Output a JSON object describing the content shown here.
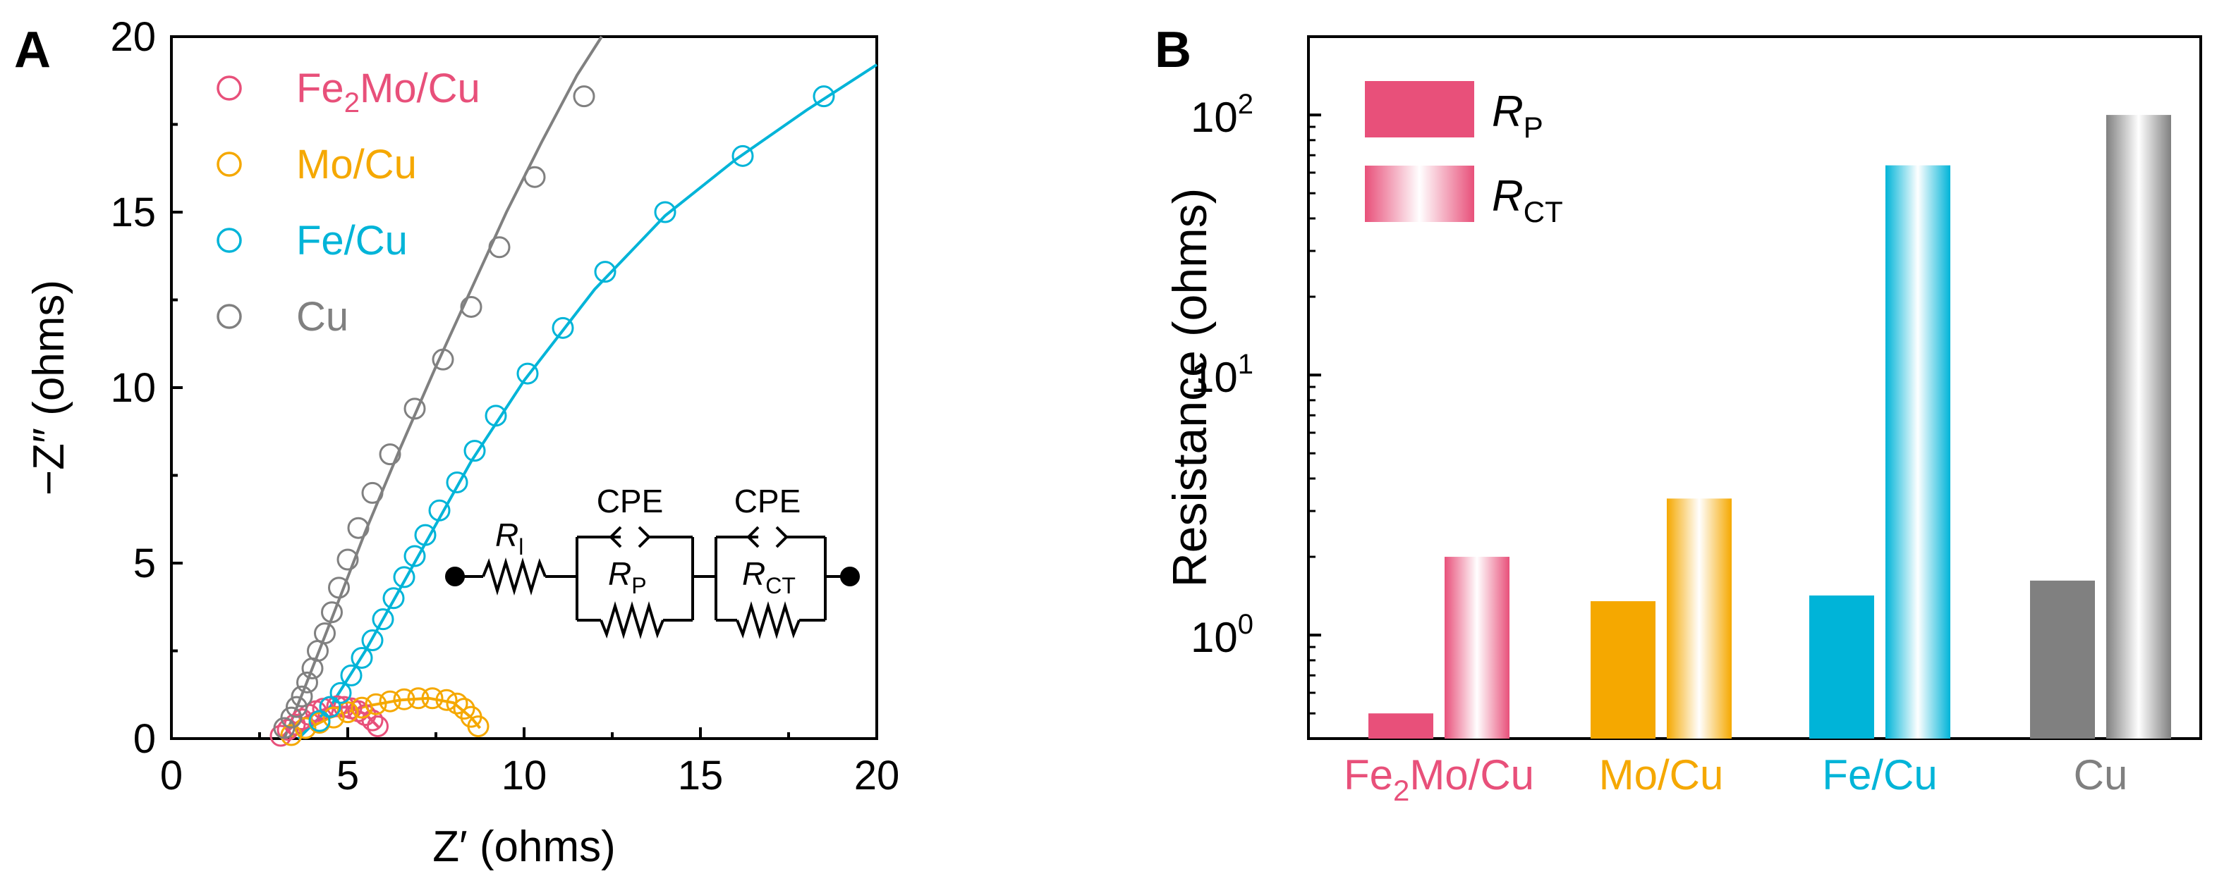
{
  "colors": {
    "fe2mo": "#e8507a",
    "mo": "#f5a800",
    "fe": "#00b4d8",
    "cu": "#808080",
    "axis": "#000000"
  },
  "chart_data": [
    {
      "type": "scatter",
      "panel_label": "A",
      "title": "",
      "xlabel": "Z′ (ohms)",
      "ylabel": "−Z″ (ohms)",
      "xlim": [
        0,
        20
      ],
      "ylim": [
        0,
        20
      ],
      "xticks": [
        "0",
        "5",
        "10",
        "15",
        "20"
      ],
      "yticks": [
        "0",
        "5",
        "10",
        "15",
        "20"
      ],
      "legend": [
        {
          "text": "Fe",
          "sub": "2",
          "tail": "Mo/Cu",
          "color_key": "fe2mo"
        },
        {
          "text": "Mo/Cu",
          "color_key": "mo"
        },
        {
          "text": "Fe/Cu",
          "color_key": "fe"
        },
        {
          "text": "Cu",
          "color_key": "cu"
        }
      ],
      "series": [
        {
          "name": "Fe2Mo/Cu",
          "color_key": "fe2mo",
          "points": [
            [
              3.1,
              0.08
            ],
            [
              3.3,
              0.25
            ],
            [
              3.5,
              0.4
            ],
            [
              3.7,
              0.55
            ],
            [
              3.9,
              0.68
            ],
            [
              4.1,
              0.78
            ],
            [
              4.3,
              0.85
            ],
            [
              4.5,
              0.9
            ],
            [
              4.7,
              0.92
            ],
            [
              4.9,
              0.9
            ],
            [
              5.1,
              0.86
            ],
            [
              5.3,
              0.78
            ],
            [
              5.5,
              0.67
            ],
            [
              5.7,
              0.52
            ],
            [
              5.85,
              0.35
            ]
          ],
          "fit": [
            [
              3.1,
              0.0
            ],
            [
              3.5,
              0.42
            ],
            [
              4.0,
              0.72
            ],
            [
              4.5,
              0.88
            ],
            [
              5.0,
              0.9
            ],
            [
              5.5,
              0.7
            ],
            [
              5.9,
              0.3
            ]
          ]
        },
        {
          "name": "Mo/Cu",
          "color_key": "mo",
          "points": [
            [
              3.4,
              0.1
            ],
            [
              3.8,
              0.3
            ],
            [
              4.2,
              0.45
            ],
            [
              4.6,
              0.6
            ],
            [
              5.0,
              0.75
            ],
            [
              5.4,
              0.88
            ],
            [
              5.8,
              0.98
            ],
            [
              6.2,
              1.06
            ],
            [
              6.6,
              1.12
            ],
            [
              7.0,
              1.15
            ],
            [
              7.4,
              1.15
            ],
            [
              7.8,
              1.1
            ],
            [
              8.1,
              1.0
            ],
            [
              8.3,
              0.85
            ],
            [
              8.5,
              0.62
            ],
            [
              8.7,
              0.35
            ]
          ],
          "fit": [
            [
              3.4,
              0.05
            ],
            [
              4.5,
              0.6
            ],
            [
              5.5,
              0.92
            ],
            [
              6.5,
              1.1
            ],
            [
              7.3,
              1.15
            ],
            [
              8.0,
              1.02
            ],
            [
              8.5,
              0.6
            ],
            [
              8.75,
              0.3
            ]
          ]
        },
        {
          "name": "Fe/Cu",
          "color_key": "fe",
          "points": [
            [
              4.2,
              0.5
            ],
            [
              4.5,
              0.9
            ],
            [
              4.8,
              1.3
            ],
            [
              5.1,
              1.8
            ],
            [
              5.4,
              2.3
            ],
            [
              5.7,
              2.8
            ],
            [
              6.0,
              3.4
            ],
            [
              6.3,
              4.0
            ],
            [
              6.6,
              4.6
            ],
            [
              6.9,
              5.2
            ],
            [
              7.2,
              5.8
            ],
            [
              7.6,
              6.5
            ],
            [
              8.1,
              7.3
            ],
            [
              8.6,
              8.2
            ],
            [
              9.2,
              9.2
            ],
            [
              10.1,
              10.4
            ],
            [
              11.1,
              11.7
            ],
            [
              12.3,
              13.3
            ],
            [
              14.0,
              15.0
            ],
            [
              16.2,
              16.6
            ],
            [
              18.5,
              18.3
            ]
          ],
          "fit": [
            [
              3.6,
              0.0
            ],
            [
              4.5,
              0.9
            ],
            [
              5.5,
              2.5
            ],
            [
              6.5,
              4.3
            ],
            [
              7.5,
              6.1
            ],
            [
              8.5,
              7.9
            ],
            [
              10,
              10.2
            ],
            [
              12,
              12.8
            ],
            [
              14,
              14.9
            ],
            [
              16,
              16.5
            ],
            [
              18,
              17.9
            ],
            [
              20,
              19.2
            ]
          ]
        },
        {
          "name": "Cu",
          "color_key": "cu",
          "points": [
            [
              3.2,
              0.3
            ],
            [
              3.4,
              0.6
            ],
            [
              3.55,
              0.9
            ],
            [
              3.7,
              1.2
            ],
            [
              3.85,
              1.6
            ],
            [
              4.0,
              2.0
            ],
            [
              4.15,
              2.5
            ],
            [
              4.35,
              3.0
            ],
            [
              4.55,
              3.6
            ],
            [
              4.75,
              4.3
            ],
            [
              5.0,
              5.1
            ],
            [
              5.3,
              6.0
            ],
            [
              5.7,
              7.0
            ],
            [
              6.2,
              8.1
            ],
            [
              6.9,
              9.4
            ],
            [
              7.7,
              10.8
            ],
            [
              8.5,
              12.3
            ],
            [
              9.3,
              14.0
            ],
            [
              10.3,
              16.0
            ],
            [
              11.7,
              18.3
            ]
          ],
          "fit": [
            [
              3.2,
              0.0
            ],
            [
              3.8,
              1.5
            ],
            [
              4.5,
              3.3
            ],
            [
              5.5,
              5.9
            ],
            [
              6.5,
              8.3
            ],
            [
              7.5,
              10.6
            ],
            [
              8.5,
              12.8
            ],
            [
              9.5,
              15.0
            ],
            [
              10.5,
              17.0
            ],
            [
              11.5,
              18.9
            ],
            [
              12.2,
              20.0
            ]
          ]
        }
      ],
      "inset_circuit": {
        "r1_main": "R",
        "r1_sub": "l",
        "cpe1": "CPE",
        "rp_main": "R",
        "rp_sub": "P",
        "cpe2": "CPE",
        "rct_main": "R",
        "rct_sub": "CT"
      }
    },
    {
      "type": "bar",
      "panel_label": "B",
      "title": "",
      "xlabel": "",
      "ylabel": "Resistance (ohms)",
      "yscale": "log",
      "ylim": [
        0.4,
        200
      ],
      "yticks": [
        {
          "base": "10",
          "exp": "0",
          "value": 1
        },
        {
          "base": "10",
          "exp": "1",
          "value": 10
        },
        {
          "base": "10",
          "exp": "2",
          "value": 100
        }
      ],
      "categories": [
        {
          "text": "Fe",
          "sub": "2",
          "tail": "Mo/Cu",
          "color_key": "fe2mo"
        },
        {
          "text": "Mo/Cu",
          "color_key": "mo"
        },
        {
          "text": "Fe/Cu",
          "color_key": "fe"
        },
        {
          "text": "Cu",
          "color_key": "cu"
        }
      ],
      "series": [
        {
          "name": "R_P",
          "values": [
            0.5,
            1.35,
            1.42,
            1.62
          ]
        },
        {
          "name": "R_CT",
          "values": [
            2.0,
            3.35,
            64,
            100
          ]
        }
      ],
      "legend": [
        {
          "main": "R",
          "sub": "P",
          "style": "solid"
        },
        {
          "main": "R",
          "sub": "CT",
          "style": "gradient"
        }
      ]
    }
  ]
}
